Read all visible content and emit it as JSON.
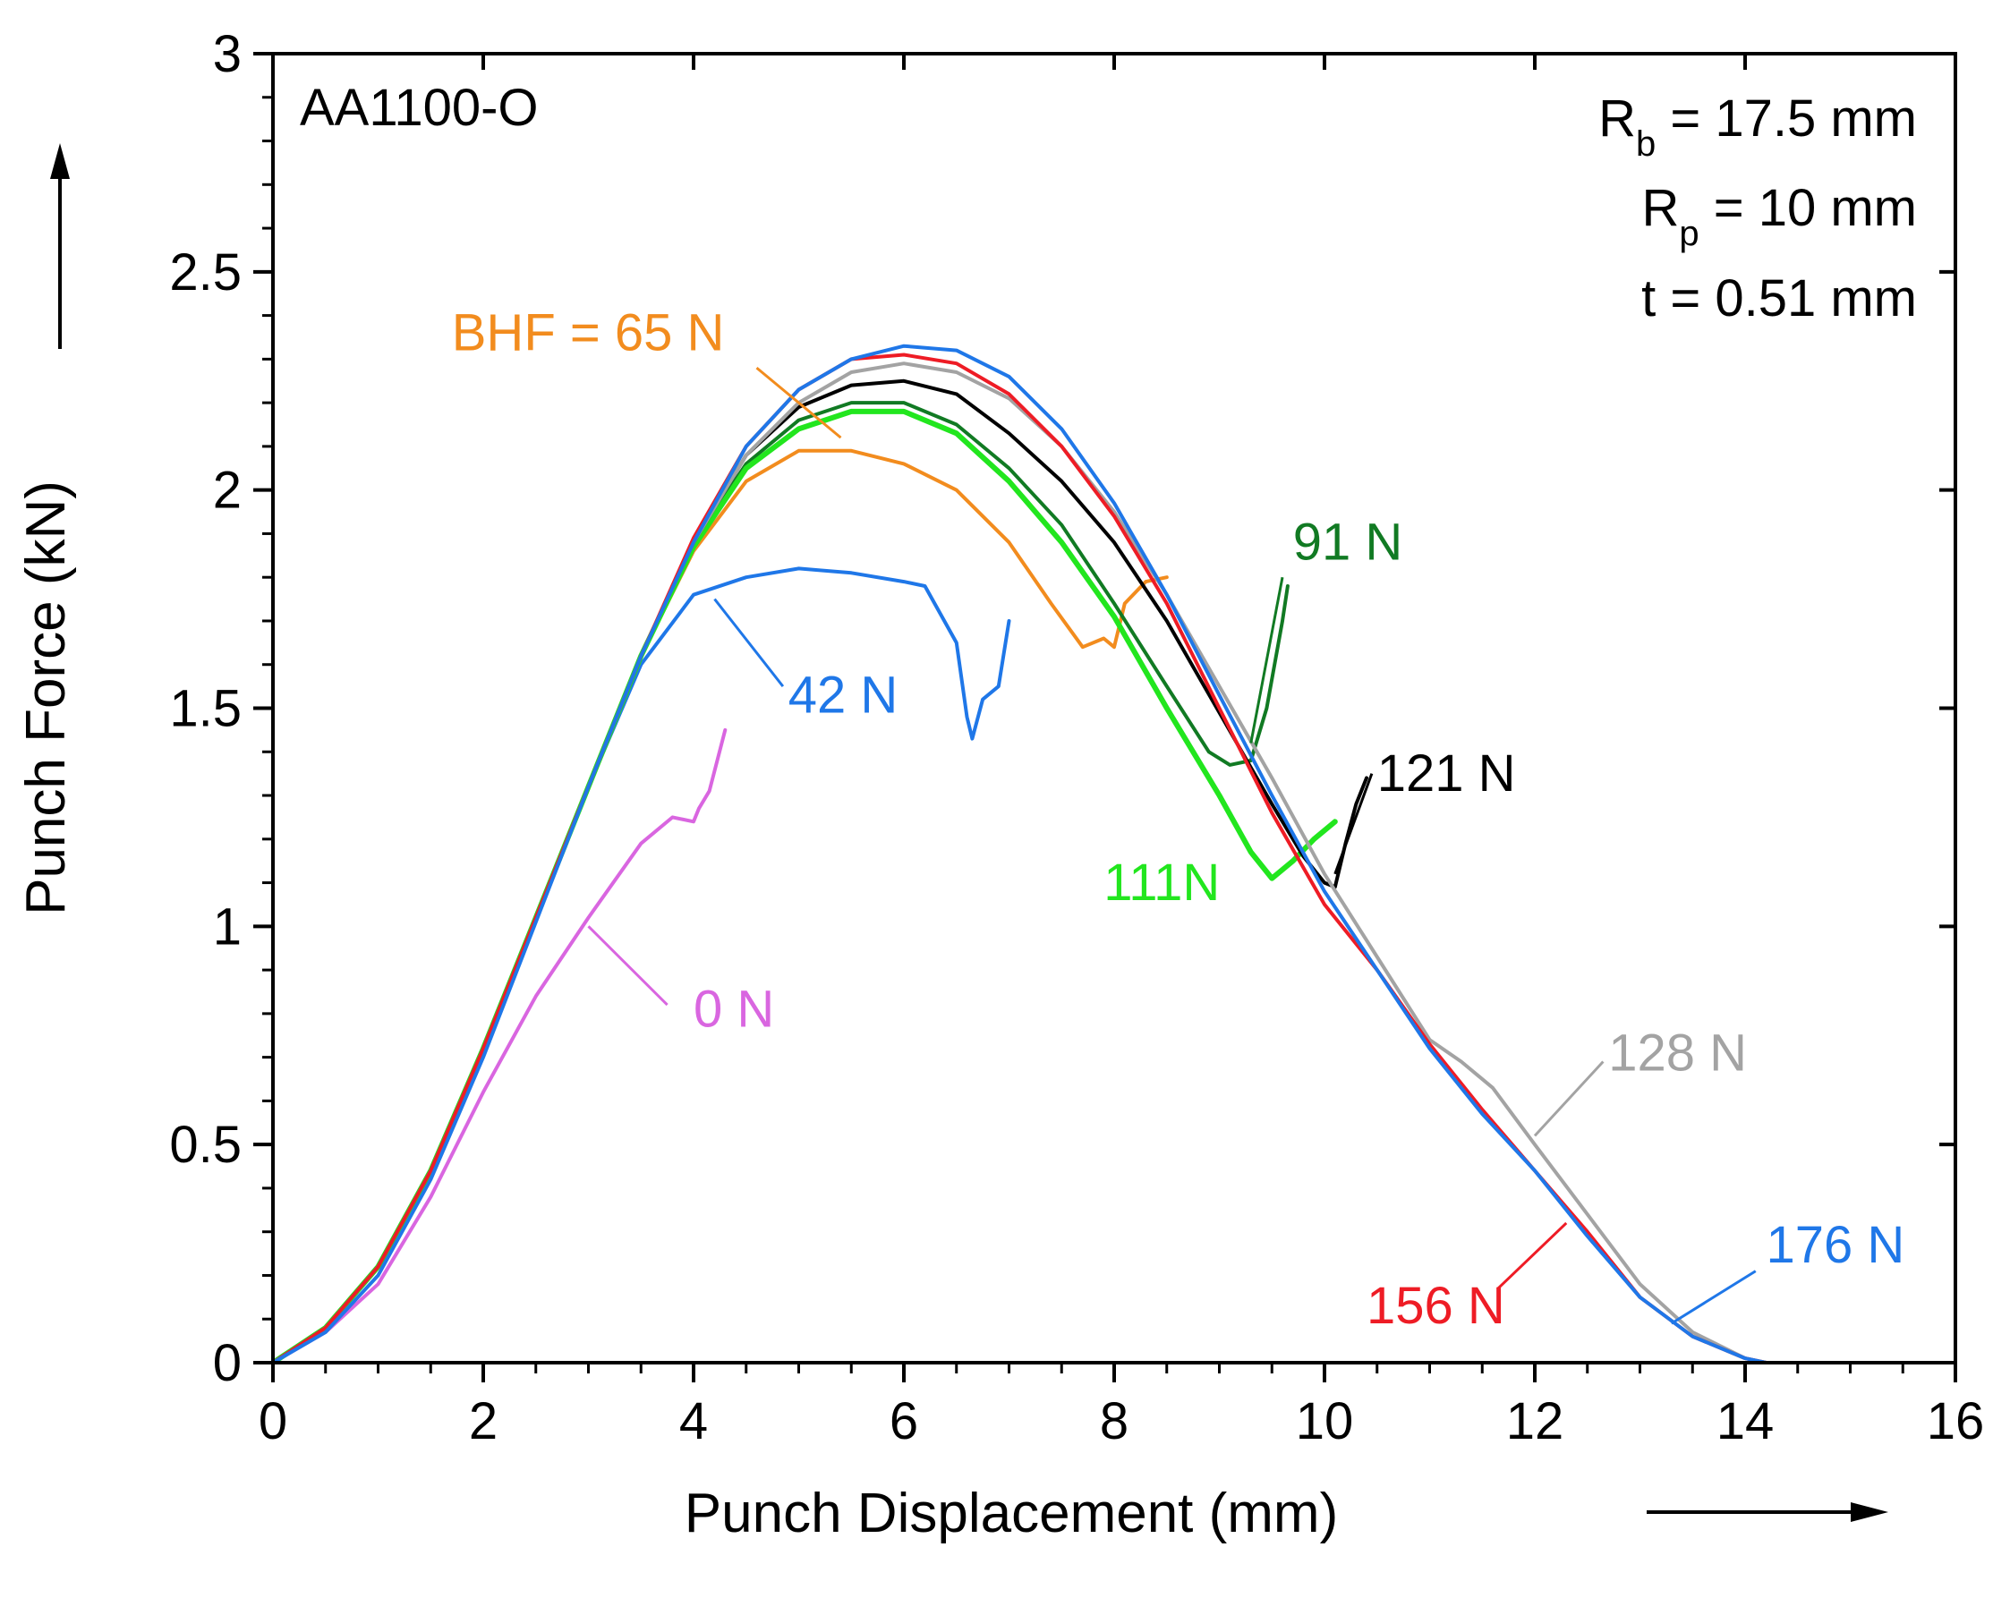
{
  "chart_data": {
    "type": "line",
    "xlabel": "Punch Displacement (mm)",
    "ylabel": "Punch Force (kN)",
    "xlim": [
      0,
      16
    ],
    "ylim": [
      0,
      3
    ],
    "x_ticks": [
      "0",
      "2",
      "4",
      "6",
      "8",
      "10",
      "12",
      "14",
      "16"
    ],
    "y_ticks": [
      "0",
      "0.5",
      "1",
      "1.5",
      "2",
      "2.5",
      "3"
    ],
    "grid": false,
    "legend": "none",
    "annotations": {
      "material": "AA1100-O",
      "rb": {
        "symbol": "R",
        "sub": "b",
        "value": " = 17.5 mm"
      },
      "rp": {
        "symbol": "R",
        "sub": "p",
        "value": " = 10 mm"
      },
      "t": "t = 0.51 mm"
    },
    "series": [
      {
        "label": "0 N",
        "color": "#d966e0",
        "label_pos": [
          4.0,
          0.77
        ],
        "leader": [
          [
            3.75,
            0.82
          ],
          [
            3.0,
            1.0
          ]
        ],
        "points": [
          [
            0,
            0
          ],
          [
            0.5,
            0.07
          ],
          [
            1,
            0.18
          ],
          [
            1.5,
            0.38
          ],
          [
            2,
            0.62
          ],
          [
            2.5,
            0.84
          ],
          [
            3,
            1.02
          ],
          [
            3.5,
            1.19
          ],
          [
            3.8,
            1.25
          ],
          [
            4.0,
            1.24
          ],
          [
            4.05,
            1.27
          ],
          [
            4.15,
            1.31
          ],
          [
            4.3,
            1.45
          ]
        ]
      },
      {
        "label": "42 N",
        "color": "#1f77e8",
        "label_pos": [
          4.9,
          1.49
        ],
        "leader": [
          [
            4.85,
            1.55
          ],
          [
            4.2,
            1.75
          ]
        ],
        "points": [
          [
            0,
            0
          ],
          [
            0.5,
            0.08
          ],
          [
            1,
            0.22
          ],
          [
            1.5,
            0.44
          ],
          [
            2,
            0.72
          ],
          [
            2.5,
            1.02
          ],
          [
            3,
            1.32
          ],
          [
            3.5,
            1.6
          ],
          [
            4,
            1.76
          ],
          [
            4.5,
            1.8
          ],
          [
            5,
            1.82
          ],
          [
            5.5,
            1.81
          ],
          [
            6,
            1.79
          ],
          [
            6.2,
            1.78
          ],
          [
            6.5,
            1.65
          ],
          [
            6.6,
            1.48
          ],
          [
            6.65,
            1.43
          ],
          [
            6.75,
            1.52
          ],
          [
            6.9,
            1.55
          ],
          [
            7.0,
            1.7
          ]
        ]
      },
      {
        "label": "BHF = 65 N",
        "color": "#f28c1e",
        "label_pos": [
          1.7,
          2.32
        ],
        "leader": [
          [
            4.6,
            2.28
          ],
          [
            5.4,
            2.12
          ]
        ],
        "points": [
          [
            0,
            0
          ],
          [
            0.5,
            0.08
          ],
          [
            1,
            0.22
          ],
          [
            1.5,
            0.44
          ],
          [
            2,
            0.72
          ],
          [
            2.5,
            1.02
          ],
          [
            3,
            1.32
          ],
          [
            3.5,
            1.62
          ],
          [
            4,
            1.86
          ],
          [
            4.5,
            2.02
          ],
          [
            5,
            2.09
          ],
          [
            5.5,
            2.09
          ],
          [
            6,
            2.06
          ],
          [
            6.5,
            2.0
          ],
          [
            7,
            1.88
          ],
          [
            7.4,
            1.74
          ],
          [
            7.7,
            1.64
          ],
          [
            7.9,
            1.66
          ],
          [
            8.0,
            1.64
          ],
          [
            8.1,
            1.74
          ],
          [
            8.3,
            1.79
          ],
          [
            8.5,
            1.8
          ]
        ]
      },
      {
        "label": "91 N",
        "color": "#117a23",
        "label_pos": [
          9.7,
          1.84
        ],
        "leader": [
          [
            9.6,
            1.8
          ],
          [
            9.3,
            1.42
          ]
        ],
        "points": [
          [
            0,
            0
          ],
          [
            0.5,
            0.08
          ],
          [
            1,
            0.22
          ],
          [
            1.5,
            0.44
          ],
          [
            2,
            0.72
          ],
          [
            2.5,
            1.02
          ],
          [
            3,
            1.32
          ],
          [
            3.5,
            1.62
          ],
          [
            4,
            1.88
          ],
          [
            4.5,
            2.06
          ],
          [
            5,
            2.16
          ],
          [
            5.5,
            2.2
          ],
          [
            6,
            2.2
          ],
          [
            6.5,
            2.15
          ],
          [
            7,
            2.05
          ],
          [
            7.5,
            1.92
          ],
          [
            8,
            1.74
          ],
          [
            8.5,
            1.55
          ],
          [
            8.9,
            1.4
          ],
          [
            9.1,
            1.37
          ],
          [
            9.3,
            1.38
          ],
          [
            9.45,
            1.5
          ],
          [
            9.6,
            1.7
          ],
          [
            9.65,
            1.78
          ]
        ]
      },
      {
        "label": "111N",
        "color": "#22e61e",
        "label_pos": [
          7.9,
          1.06
        ],
        "leader": null,
        "points": [
          [
            0,
            0
          ],
          [
            0.5,
            0.08
          ],
          [
            1,
            0.22
          ],
          [
            1.5,
            0.44
          ],
          [
            2,
            0.72
          ],
          [
            2.5,
            1.02
          ],
          [
            3,
            1.32
          ],
          [
            3.5,
            1.62
          ],
          [
            4,
            1.87
          ],
          [
            4.5,
            2.05
          ],
          [
            5,
            2.14
          ],
          [
            5.5,
            2.18
          ],
          [
            6,
            2.18
          ],
          [
            6.5,
            2.13
          ],
          [
            7,
            2.02
          ],
          [
            7.5,
            1.88
          ],
          [
            8,
            1.71
          ],
          [
            8.5,
            1.5
          ],
          [
            9,
            1.3
          ],
          [
            9.3,
            1.17
          ],
          [
            9.5,
            1.11
          ],
          [
            9.7,
            1.15
          ],
          [
            9.9,
            1.2
          ],
          [
            10.1,
            1.24
          ]
        ]
      },
      {
        "label": "121 N",
        "color": "#000000",
        "label_pos": [
          10.5,
          1.31
        ],
        "leader": [
          [
            10.45,
            1.35
          ],
          [
            10.1,
            1.12
          ]
        ],
        "points": [
          [
            0,
            0
          ],
          [
            0.5,
            0.08
          ],
          [
            1,
            0.22
          ],
          [
            1.5,
            0.44
          ],
          [
            2,
            0.72
          ],
          [
            2.5,
            1.02
          ],
          [
            3,
            1.32
          ],
          [
            3.5,
            1.62
          ],
          [
            4,
            1.88
          ],
          [
            4.5,
            2.08
          ],
          [
            5,
            2.19
          ],
          [
            5.5,
            2.24
          ],
          [
            6,
            2.25
          ],
          [
            6.5,
            2.22
          ],
          [
            7,
            2.13
          ],
          [
            7.5,
            2.02
          ],
          [
            8,
            1.88
          ],
          [
            8.5,
            1.7
          ],
          [
            9,
            1.49
          ],
          [
            9.5,
            1.28
          ],
          [
            9.8,
            1.16
          ],
          [
            10.0,
            1.1
          ],
          [
            10.1,
            1.09
          ],
          [
            10.2,
            1.19
          ],
          [
            10.3,
            1.28
          ],
          [
            10.4,
            1.34
          ]
        ]
      },
      {
        "label": "128 N",
        "color": "#a3a3a3",
        "label_pos": [
          12.7,
          0.67
        ],
        "leader": [
          [
            12.65,
            0.69
          ],
          [
            12.0,
            0.52
          ]
        ],
        "points": [
          [
            0,
            0
          ],
          [
            0.5,
            0.08
          ],
          [
            1,
            0.22
          ],
          [
            1.5,
            0.44
          ],
          [
            2,
            0.72
          ],
          [
            2.5,
            1.02
          ],
          [
            3,
            1.32
          ],
          [
            3.5,
            1.62
          ],
          [
            4,
            1.88
          ],
          [
            4.5,
            2.08
          ],
          [
            5,
            2.2
          ],
          [
            5.5,
            2.27
          ],
          [
            6,
            2.29
          ],
          [
            6.5,
            2.27
          ],
          [
            7,
            2.21
          ],
          [
            7.5,
            2.1
          ],
          [
            8,
            1.95
          ],
          [
            8.5,
            1.76
          ],
          [
            9,
            1.55
          ],
          [
            9.5,
            1.34
          ],
          [
            10,
            1.12
          ],
          [
            10.5,
            0.93
          ],
          [
            11,
            0.74
          ],
          [
            11.3,
            0.69
          ],
          [
            11.6,
            0.63
          ],
          [
            12,
            0.5
          ],
          [
            12.5,
            0.34
          ],
          [
            13,
            0.18
          ],
          [
            13.5,
            0.07
          ],
          [
            14,
            0.01
          ],
          [
            14.2,
            0
          ]
        ]
      },
      {
        "label": "156 N",
        "color": "#ee1c25",
        "label_pos": [
          10.4,
          0.09
        ],
        "leader": [
          [
            11.65,
            0.17
          ],
          [
            12.3,
            0.32
          ]
        ],
        "points": [
          [
            0,
            0
          ],
          [
            0.5,
            0.08
          ],
          [
            1,
            0.22
          ],
          [
            1.5,
            0.44
          ],
          [
            2,
            0.72
          ],
          [
            2.5,
            1.02
          ],
          [
            3,
            1.32
          ],
          [
            3.5,
            1.62
          ],
          [
            4,
            1.89
          ],
          [
            4.5,
            2.1
          ],
          [
            5,
            2.23
          ],
          [
            5.5,
            2.3
          ],
          [
            6,
            2.31
          ],
          [
            6.5,
            2.29
          ],
          [
            7,
            2.22
          ],
          [
            7.5,
            2.1
          ],
          [
            8,
            1.94
          ],
          [
            8.5,
            1.74
          ],
          [
            9,
            1.5
          ],
          [
            9.5,
            1.26
          ],
          [
            10,
            1.05
          ],
          [
            10.5,
            0.9
          ],
          [
            11,
            0.73
          ],
          [
            11.5,
            0.58
          ],
          [
            12,
            0.44
          ],
          [
            12.5,
            0.3
          ],
          [
            13,
            0.15
          ],
          [
            13.5,
            0.06
          ],
          [
            14,
            0.01
          ],
          [
            14.2,
            0
          ]
        ]
      },
      {
        "label": "176 N",
        "color": "#1f77e8",
        "label_pos": [
          14.2,
          0.23
        ],
        "leader": [
          [
            14.1,
            0.21
          ],
          [
            13.3,
            0.09
          ]
        ],
        "points": [
          [
            0,
            0
          ],
          [
            0.5,
            0.07
          ],
          [
            1,
            0.2
          ],
          [
            1.5,
            0.42
          ],
          [
            2,
            0.7
          ],
          [
            2.5,
            1.01
          ],
          [
            3,
            1.32
          ],
          [
            3.5,
            1.62
          ],
          [
            4,
            1.88
          ],
          [
            4.5,
            2.1
          ],
          [
            5,
            2.23
          ],
          [
            5.5,
            2.3
          ],
          [
            6,
            2.33
          ],
          [
            6.5,
            2.32
          ],
          [
            7,
            2.26
          ],
          [
            7.5,
            2.14
          ],
          [
            8,
            1.97
          ],
          [
            8.5,
            1.76
          ],
          [
            9,
            1.53
          ],
          [
            9.5,
            1.3
          ],
          [
            10,
            1.08
          ],
          [
            10.5,
            0.9
          ],
          [
            11,
            0.72
          ],
          [
            11.5,
            0.57
          ],
          [
            12,
            0.44
          ],
          [
            12.5,
            0.29
          ],
          [
            13,
            0.15
          ],
          [
            13.5,
            0.06
          ],
          [
            14,
            0.01
          ],
          [
            14.2,
            0
          ]
        ]
      }
    ]
  }
}
